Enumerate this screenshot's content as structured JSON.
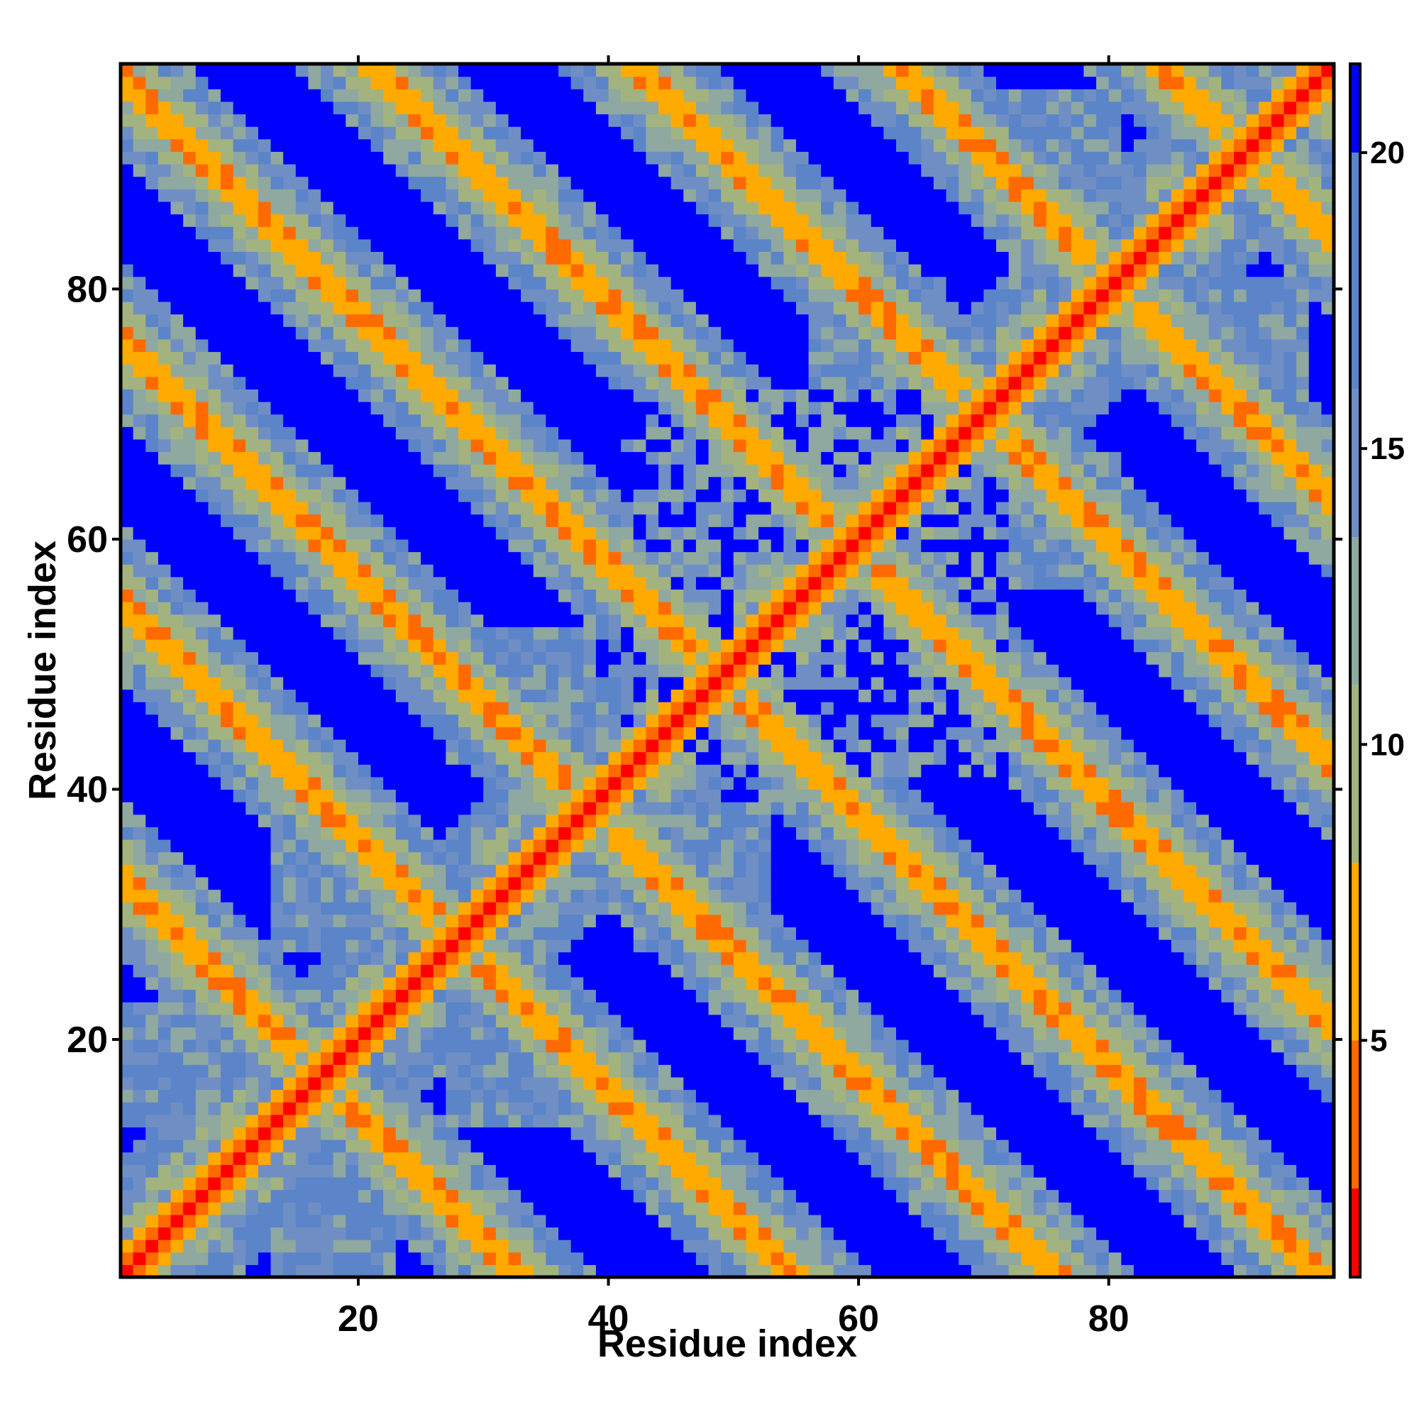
{
  "chart_data": {
    "type": "heatmap",
    "title": "",
    "xlabel": "Residue index",
    "ylabel": "Residue index",
    "n": 97,
    "xlim": [
      1,
      98
    ],
    "ylim": [
      1,
      98
    ],
    "x_ticks": [
      20,
      40,
      60,
      80
    ],
    "y_ticks": [
      20,
      40,
      60,
      80
    ],
    "x_tick_labels": [
      "20",
      "40",
      "60",
      "80"
    ],
    "y_tick_labels": [
      "20",
      "40",
      "60",
      "80"
    ],
    "value_range": [
      1,
      21.5
    ],
    "colorbar": {
      "ticks": [
        5,
        10,
        15,
        20
      ],
      "tick_labels": [
        "5",
        "10",
        "15",
        "20"
      ],
      "placement": "right"
    },
    "color_scale": [
      {
        "max": 2.5,
        "color": "#ff0000"
      },
      {
        "max": 5.0,
        "color": "#ff6a00"
      },
      {
        "max": 8.0,
        "color": "#ffaa00"
      },
      {
        "max": 11.0,
        "color": "#a3b37f"
      },
      {
        "max": 13.5,
        "color": "#8fa8a0"
      },
      {
        "max": 16.0,
        "color": "#6f8fc4"
      },
      {
        "max": 20.0,
        "color": "#5b84c9"
      },
      {
        "max": 999,
        "color": "#0000ff"
      }
    ],
    "pattern": {
      "description_free": true,
      "strands": [
        [
          1,
          8
        ],
        [
          13,
          22
        ],
        [
          27,
          38
        ],
        [
          42,
          52
        ],
        [
          56,
          66
        ],
        [
          70,
          80
        ],
        [
          84,
          95
        ]
      ],
      "base_distance": 20.0
    }
  }
}
